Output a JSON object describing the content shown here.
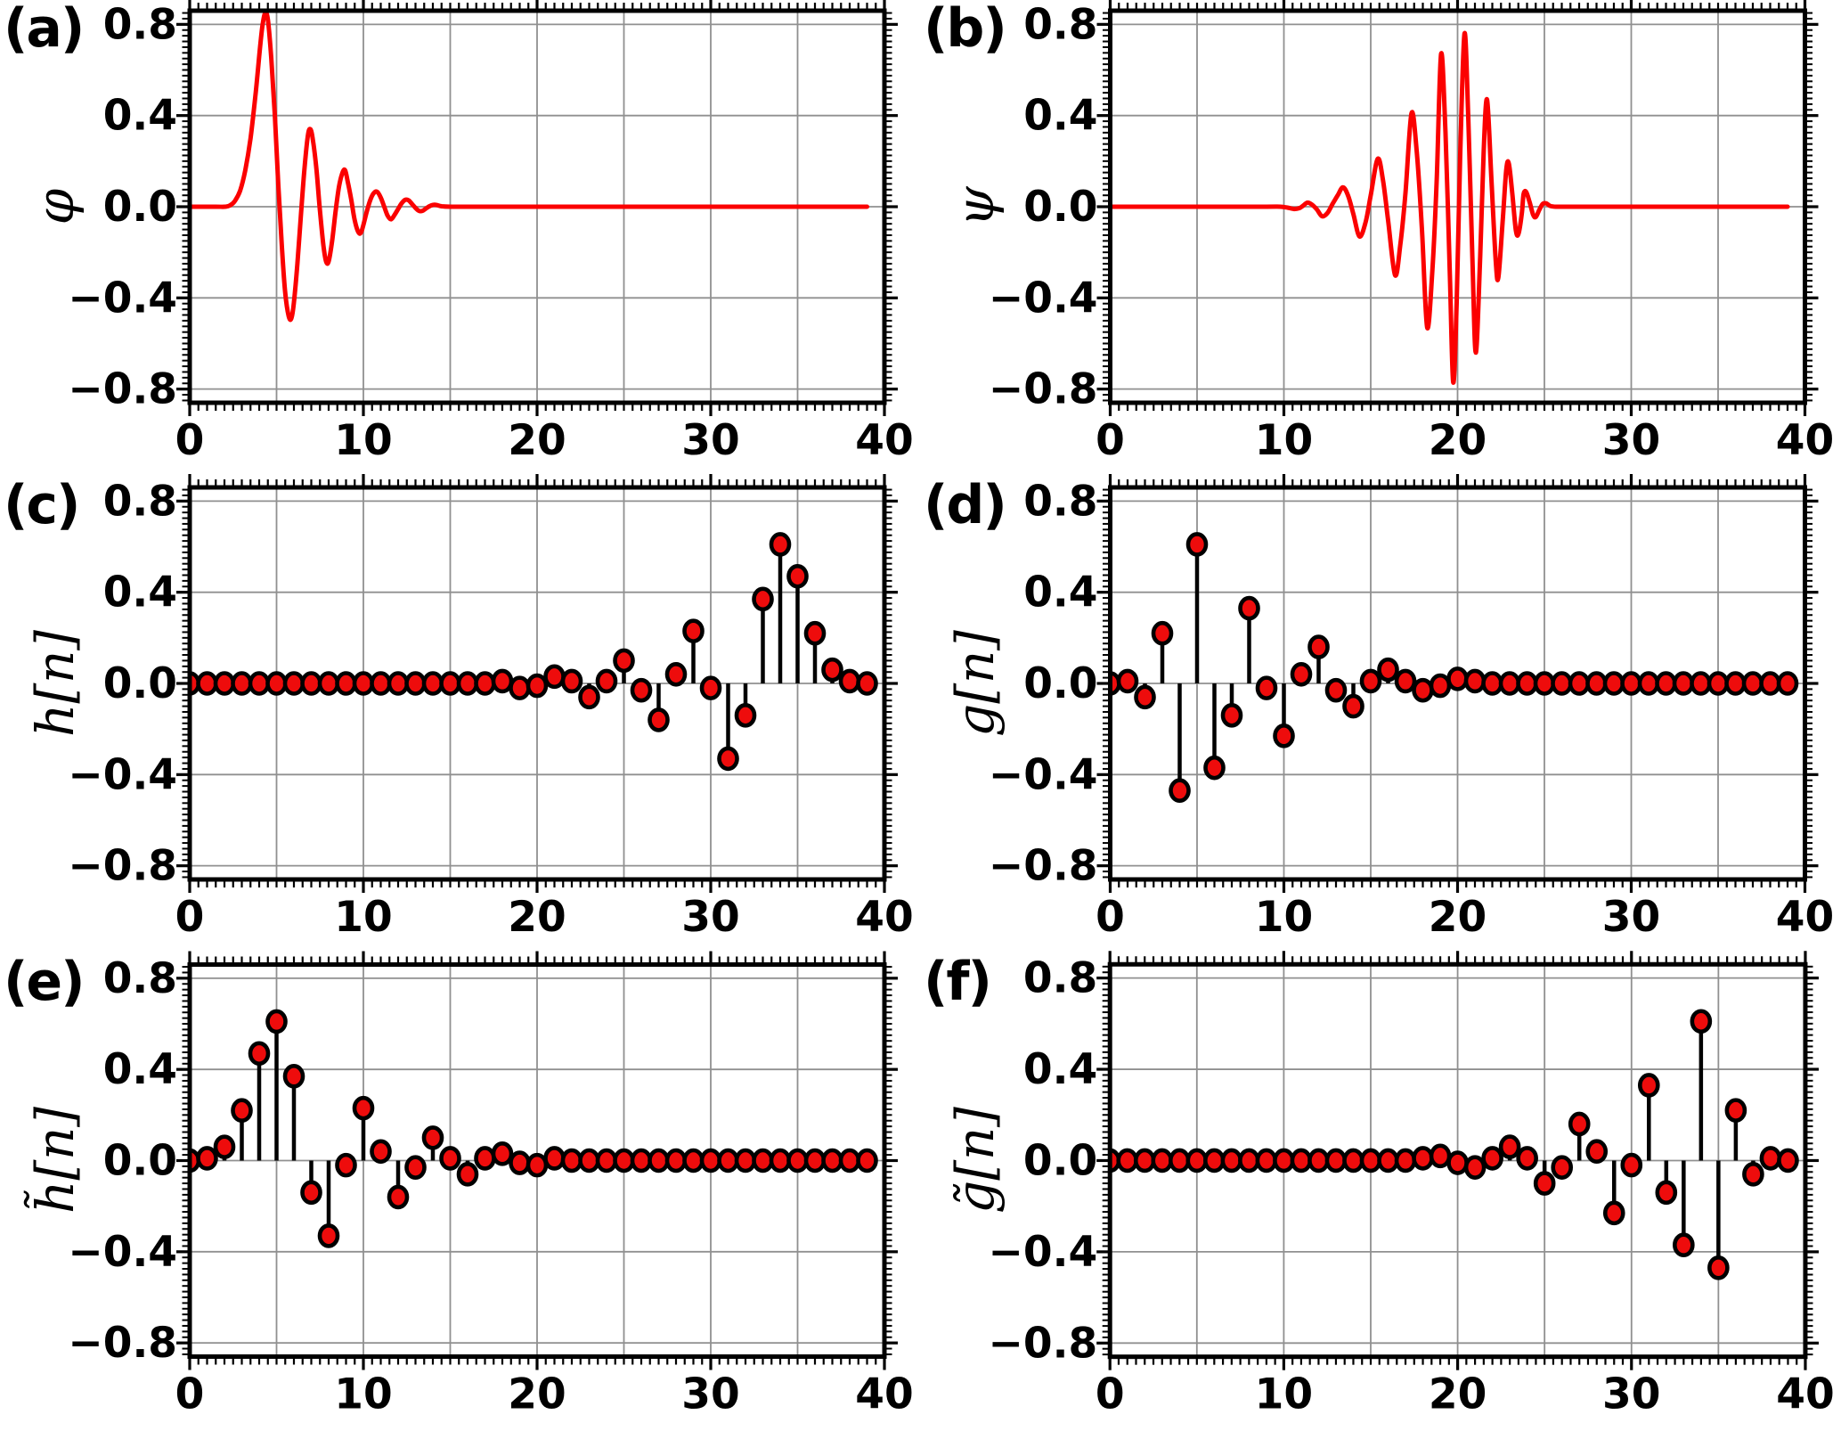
{
  "axes": {
    "xlim": [
      0,
      40
    ],
    "ylim": [
      -0.86,
      0.86
    ],
    "x_major_ticks": [
      0,
      10,
      20,
      30,
      40
    ],
    "x_tick_labels": [
      "0",
      "10",
      "20",
      "30",
      "40"
    ],
    "x_minor_step": 0.5,
    "x_grid_step": 5,
    "y_major_ticks": [
      0.8,
      0.4,
      0.0,
      -0.4,
      -0.8
    ],
    "y_tick_labels": [
      "0.8",
      "0.4",
      "0.0",
      "−0.4",
      "−0.8"
    ],
    "y_minor_step": 0.025,
    "grid": true,
    "legend": "none"
  },
  "style": {
    "curve_color": "#fb0000",
    "dot_fill": "#ee0c0c",
    "dot_stroke": "#000000",
    "stem_color": "#000000",
    "grid_color": "#909090",
    "frame_color": "#000000",
    "text_color": "#000000",
    "background": "#ffffff"
  },
  "chart_data": [
    {
      "type": "line",
      "panel_label": "(a)",
      "ylabel": "φ",
      "xlabel": "",
      "x_range": [
        0,
        39
      ],
      "points": [
        [
          0,
          0
        ],
        [
          1.5,
          0
        ],
        [
          2,
          0
        ],
        [
          2.3,
          0.005
        ],
        [
          2.6,
          0.025
        ],
        [
          2.9,
          0.07
        ],
        [
          3.2,
          0.16
        ],
        [
          3.5,
          0.3
        ],
        [
          3.8,
          0.5
        ],
        [
          4.05,
          0.7
        ],
        [
          4.2,
          0.8
        ],
        [
          4.35,
          0.85
        ],
        [
          4.5,
          0.82
        ],
        [
          4.7,
          0.65
        ],
        [
          4.9,
          0.4
        ],
        [
          5.1,
          0.1
        ],
        [
          5.3,
          -0.17
        ],
        [
          5.5,
          -0.38
        ],
        [
          5.7,
          -0.48
        ],
        [
          5.85,
          -0.49
        ],
        [
          6,
          -0.42
        ],
        [
          6.2,
          -0.25
        ],
        [
          6.4,
          -0.04
        ],
        [
          6.6,
          0.16
        ],
        [
          6.8,
          0.31
        ],
        [
          6.95,
          0.34
        ],
        [
          7.1,
          0.29
        ],
        [
          7.3,
          0.16
        ],
        [
          7.5,
          -0.02
        ],
        [
          7.7,
          -0.17
        ],
        [
          7.85,
          -0.24
        ],
        [
          8,
          -0.24
        ],
        [
          8.2,
          -0.15
        ],
        [
          8.4,
          -0.02
        ],
        [
          8.6,
          0.09
        ],
        [
          8.8,
          0.15
        ],
        [
          8.95,
          0.16
        ],
        [
          9.1,
          0.11
        ],
        [
          9.3,
          0.03
        ],
        [
          9.5,
          -0.06
        ],
        [
          9.7,
          -0.11
        ],
        [
          9.85,
          -0.115
        ],
        [
          10,
          -0.08
        ],
        [
          10.2,
          -0.02
        ],
        [
          10.4,
          0.03
        ],
        [
          10.6,
          0.06
        ],
        [
          10.8,
          0.065
        ],
        [
          11,
          0.04
        ],
        [
          11.2,
          0
        ],
        [
          11.4,
          -0.04
        ],
        [
          11.6,
          -0.055
        ],
        [
          11.8,
          -0.035
        ],
        [
          12,
          -0.01
        ],
        [
          12.2,
          0.015
        ],
        [
          12.4,
          0.03
        ],
        [
          12.6,
          0.028
        ],
        [
          12.8,
          0.012
        ],
        [
          13,
          -0.005
        ],
        [
          13.2,
          -0.018
        ],
        [
          13.4,
          -0.018
        ],
        [
          13.6,
          -0.008
        ],
        [
          13.8,
          0.002
        ],
        [
          14,
          0.008
        ],
        [
          14.2,
          0.008
        ],
        [
          14.5,
          0.002
        ],
        [
          15,
          0
        ],
        [
          16,
          0
        ],
        [
          18,
          0
        ],
        [
          22,
          0
        ],
        [
          26,
          0
        ],
        [
          30,
          0
        ],
        [
          35,
          0
        ],
        [
          39,
          0
        ]
      ]
    },
    {
      "type": "line",
      "panel_label": "(b)",
      "ylabel": "ψ",
      "xlabel": "",
      "x_range": [
        0,
        39
      ],
      "points": [
        [
          0,
          0
        ],
        [
          3,
          0
        ],
        [
          6,
          0
        ],
        [
          9,
          0
        ],
        [
          9.8,
          0
        ],
        [
          10.2,
          -0.004
        ],
        [
          10.6,
          -0.01
        ],
        [
          10.9,
          -0.006
        ],
        [
          11.1,
          0.004
        ],
        [
          11.35,
          0.018
        ],
        [
          11.6,
          0.01
        ],
        [
          11.9,
          -0.012
        ],
        [
          12.2,
          -0.042
        ],
        [
          12.5,
          -0.028
        ],
        [
          12.8,
          0.012
        ],
        [
          13.1,
          0.05
        ],
        [
          13.4,
          0.085
        ],
        [
          13.7,
          0.048
        ],
        [
          14,
          -0.032
        ],
        [
          14.35,
          -0.13
        ],
        [
          14.7,
          -0.07
        ],
        [
          15,
          0.05
        ],
        [
          15.4,
          0.21
        ],
        [
          15.7,
          0.12
        ],
        [
          16,
          -0.06
        ],
        [
          16.4,
          -0.3
        ],
        [
          16.7,
          -0.17
        ],
        [
          17,
          0.06
        ],
        [
          17.35,
          0.41
        ],
        [
          17.65,
          0.24
        ],
        [
          17.95,
          -0.1
        ],
        [
          18.25,
          -0.53
        ],
        [
          18.55,
          -0.28
        ],
        [
          18.8,
          0.12
        ],
        [
          19.05,
          0.67
        ],
        [
          19.3,
          0.33
        ],
        [
          19.55,
          -0.28
        ],
        [
          19.75,
          -0.77
        ],
        [
          19.95,
          -0.42
        ],
        [
          20.15,
          0.22
        ],
        [
          20.4,
          0.76
        ],
        [
          20.62,
          0.38
        ],
        [
          20.85,
          -0.22
        ],
        [
          21.05,
          -0.64
        ],
        [
          21.3,
          -0.22
        ],
        [
          21.5,
          0.24
        ],
        [
          21.7,
          0.47
        ],
        [
          21.95,
          0.12
        ],
        [
          22.2,
          -0.24
        ],
        [
          22.35,
          -0.31
        ],
        [
          22.6,
          -0.06
        ],
        [
          22.8,
          0.16
        ],
        [
          22.95,
          0.19
        ],
        [
          23.15,
          0.06
        ],
        [
          23.35,
          -0.1
        ],
        [
          23.5,
          -0.12
        ],
        [
          23.7,
          -0.03
        ],
        [
          23.8,
          0.055
        ],
        [
          23.95,
          0.065
        ],
        [
          24.15,
          0.02
        ],
        [
          24.35,
          -0.035
        ],
        [
          24.5,
          -0.045
        ],
        [
          24.7,
          -0.015
        ],
        [
          24.9,
          0.012
        ],
        [
          25.1,
          0.015
        ],
        [
          25.35,
          0.003
        ],
        [
          25.7,
          0
        ],
        [
          26.5,
          0
        ],
        [
          28,
          0
        ],
        [
          32,
          0
        ],
        [
          36,
          0
        ],
        [
          39,
          0
        ]
      ]
    },
    {
      "type": "stem",
      "panel_label": "(c)",
      "ylabel": "h[n]",
      "xlabel": "",
      "n_start": 0,
      "values": [
        0,
        0,
        0,
        0,
        0,
        0,
        0,
        0,
        0,
        0,
        0,
        0,
        0,
        0,
        0,
        0,
        0,
        0,
        0.01,
        -0.02,
        -0.01,
        0.03,
        0.01,
        -0.06,
        0.01,
        0.1,
        -0.03,
        -0.16,
        0.04,
        0.23,
        -0.02,
        -0.33,
        -0.14,
        0.37,
        0.61,
        0.47,
        0.22,
        0.06,
        0.01,
        0
      ]
    },
    {
      "type": "stem",
      "panel_label": "(d)",
      "ylabel": "g[n]",
      "xlabel": "",
      "n_start": 0,
      "values": [
        0,
        0.01,
        -0.06,
        0.22,
        -0.47,
        0.61,
        -0.37,
        -0.14,
        0.33,
        -0.02,
        -0.23,
        0.04,
        0.16,
        -0.03,
        -0.1,
        0.01,
        0.06,
        0.01,
        -0.03,
        -0.01,
        0.02,
        0.01,
        0,
        0,
        0,
        0,
        0,
        0,
        0,
        0,
        0,
        0,
        0,
        0,
        0,
        0,
        0,
        0,
        0,
        0
      ]
    },
    {
      "type": "stem",
      "panel_label": "(e)",
      "ylabel": "h̃[n]",
      "xlabel": "",
      "n_start": 0,
      "values": [
        0,
        0.01,
        0.06,
        0.22,
        0.47,
        0.61,
        0.37,
        -0.14,
        -0.33,
        -0.02,
        0.23,
        0.04,
        -0.16,
        -0.03,
        0.1,
        0.01,
        -0.06,
        0.01,
        0.03,
        -0.01,
        -0.02,
        0.01,
        0,
        0,
        0,
        0,
        0,
        0,
        0,
        0,
        0,
        0,
        0,
        0,
        0,
        0,
        0,
        0,
        0,
        0
      ]
    },
    {
      "type": "stem",
      "panel_label": "(f)",
      "ylabel": "g̃[n]",
      "xlabel": "",
      "n_start": 0,
      "values": [
        0,
        0,
        0,
        0,
        0,
        0,
        0,
        0,
        0,
        0,
        0,
        0,
        0,
        0,
        0,
        0,
        0,
        0,
        0.01,
        0.02,
        -0.01,
        -0.03,
        0.01,
        0.06,
        0.01,
        -0.1,
        -0.03,
        0.16,
        0.04,
        -0.23,
        -0.02,
        0.33,
        -0.14,
        -0.37,
        0.61,
        -0.47,
        0.22,
        -0.06,
        0.01,
        0
      ]
    }
  ]
}
